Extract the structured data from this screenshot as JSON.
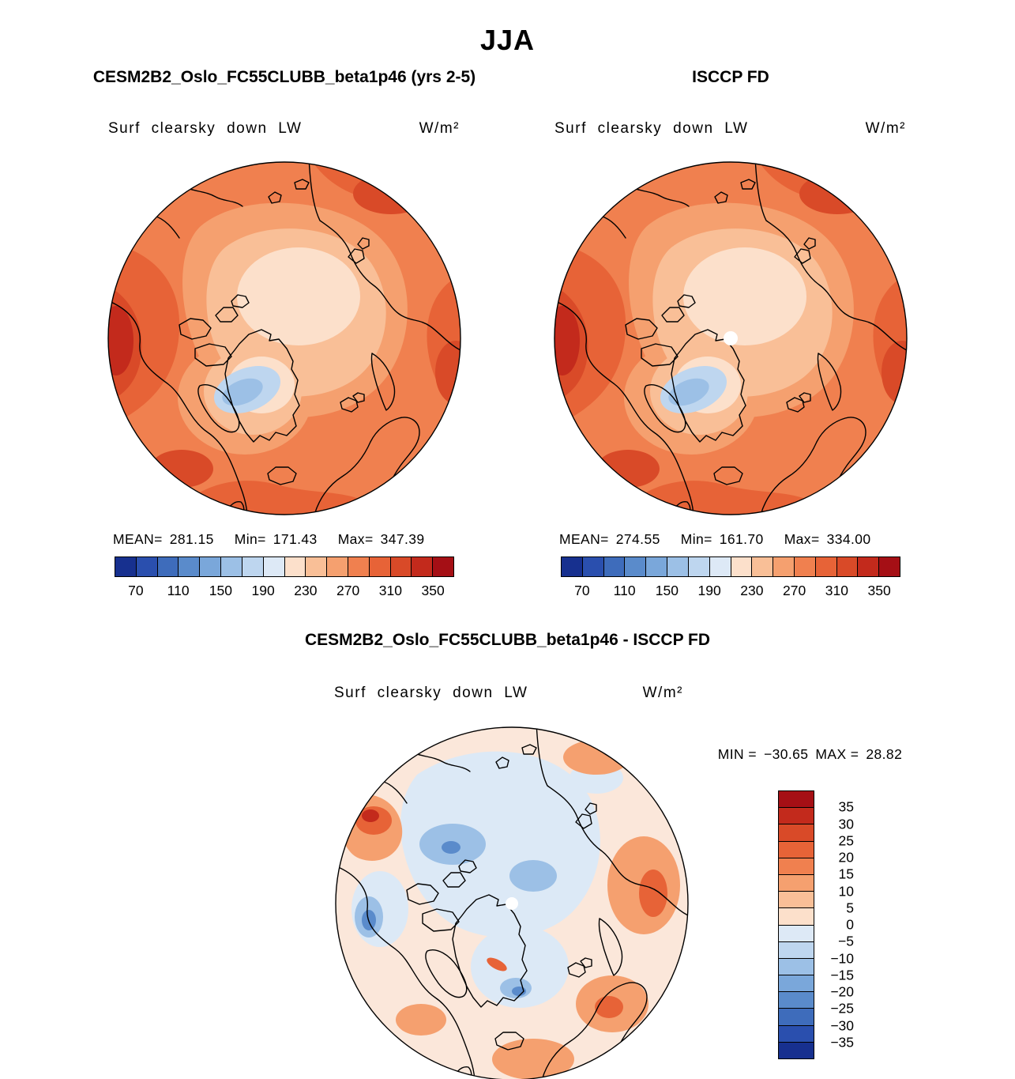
{
  "page": {
    "title": "JJA"
  },
  "panels": {
    "model": {
      "title": "CESM2B2_Oslo_FC55CLUBB_beta1p46 (yrs 2-5)",
      "field_label": "Surf clearsky down LW",
      "units": "W/m²",
      "stats": {
        "mean_label": "MEAN=",
        "mean": "281.15",
        "min_label": "Min=",
        "min": "171.43",
        "max_label": "Max=",
        "max": "347.39"
      }
    },
    "obs": {
      "title": "ISCCP FD",
      "field_label": "Surf clearsky down LW",
      "units": "W/m²",
      "stats": {
        "mean_label": "MEAN=",
        "mean": "274.55",
        "min_label": "Min=",
        "min": "161.70",
        "max_label": "Max=",
        "max": "334.00"
      }
    },
    "diff": {
      "title": "CESM2B2_Oslo_FC55CLUBB_beta1p46 - ISCCP FD",
      "field_label": "Surf clearsky down LW",
      "units": "W/m²",
      "stats": {
        "min_label": "MIN =",
        "min": "−30.65",
        "max_label": "MAX =",
        "max": "28.82"
      }
    }
  },
  "colorbar_absolute": {
    "orientation": "horizontal",
    "colors": [
      "#17308f",
      "#2a4fae",
      "#3e6cbb",
      "#5a8bcb",
      "#7aa7da",
      "#9cc0e6",
      "#bed6ef",
      "#dde9f6",
      "#fce0cb",
      "#f9bf97",
      "#f5a06f",
      "#f0804f",
      "#e76337",
      "#d94a28",
      "#c32a1c",
      "#a50f15"
    ],
    "tick_labels": [
      "70",
      "110",
      "150",
      "190",
      "230",
      "270",
      "310",
      "350"
    ]
  },
  "colorbar_diff": {
    "orientation": "vertical",
    "colors": [
      "#a50f15",
      "#c32a1c",
      "#d94a28",
      "#e76337",
      "#f0804f",
      "#f5a06f",
      "#f9bf97",
      "#fce0cb",
      "#dde9f6",
      "#bed6ef",
      "#9cc0e6",
      "#7aa7da",
      "#5a8bcb",
      "#3e6cbb",
      "#2a4fae",
      "#17308f"
    ],
    "tick_labels": [
      "35",
      "30",
      "25",
      "20",
      "15",
      "10",
      "5",
      "0",
      "−5",
      "−10",
      "−15",
      "−20",
      "−25",
      "−30",
      "−35"
    ]
  },
  "chart_data": {
    "type": "heatmap",
    "title": "JJA",
    "variable": "Surf clearsky down LW",
    "units": "W/m^2",
    "projection": "north polar stereographic",
    "panels": [
      {
        "name": "CESM2B2_Oslo_FC55CLUBB_beta1p46 (yrs 2-5)",
        "role": "model",
        "mean": 281.15,
        "min": 171.43,
        "max": 347.39
      },
      {
        "name": "ISCCP FD",
        "role": "observations",
        "mean": 274.55,
        "min": 161.7,
        "max": 334.0
      },
      {
        "name": "CESM2B2_Oslo_FC55CLUBB_beta1p46 - ISCCP FD",
        "role": "difference",
        "min": -30.65,
        "max": 28.82
      }
    ],
    "absolute_scale": {
      "tick_values": [
        70,
        110,
        150,
        190,
        230,
        270,
        310,
        350
      ],
      "range": [
        50,
        370
      ],
      "n_colors": 16,
      "legend_position": "below each map"
    },
    "diff_scale": {
      "tick_values": [
        35,
        30,
        25,
        20,
        15,
        10,
        5,
        0,
        -5,
        -10,
        -15,
        -20,
        -25,
        -30,
        -35
      ],
      "range": [
        -40,
        40
      ],
      "n_colors": 16,
      "legend_position": "right of difference map"
    }
  }
}
